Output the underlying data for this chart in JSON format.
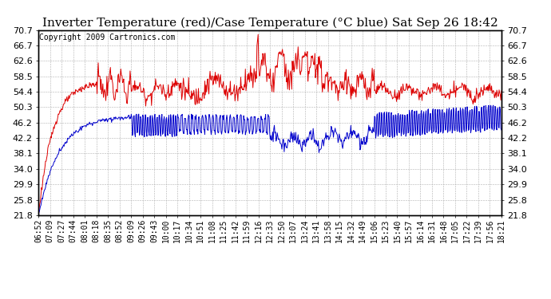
{
  "title": "Inverter Temperature (red)/Case Temperature (°C blue) Sat Sep 26 18:42",
  "copyright": "Copyright 2009 Cartronics.com",
  "yticks": [
    21.8,
    25.8,
    29.9,
    34.0,
    38.1,
    42.2,
    46.2,
    50.3,
    54.4,
    58.5,
    62.6,
    66.7,
    70.7
  ],
  "ymin": 21.8,
  "ymax": 70.7,
  "xtick_labels": [
    "06:52",
    "07:09",
    "07:27",
    "07:44",
    "08:01",
    "08:18",
    "08:35",
    "08:52",
    "09:09",
    "09:26",
    "09:43",
    "10:00",
    "10:17",
    "10:34",
    "10:51",
    "11:08",
    "11:25",
    "11:42",
    "11:59",
    "12:16",
    "12:33",
    "12:50",
    "13:07",
    "13:24",
    "13:41",
    "13:58",
    "14:15",
    "14:32",
    "14:49",
    "15:06",
    "15:23",
    "15:40",
    "15:57",
    "16:14",
    "16:31",
    "16:48",
    "17:05",
    "17:22",
    "17:39",
    "17:56",
    "18:21"
  ],
  "bg_color": "#ffffff",
  "grid_color": "#b0b0b0",
  "red_line_color": "#dd0000",
  "blue_line_color": "#0000cc",
  "title_fontsize": 11,
  "copyright_fontsize": 7,
  "tick_fontsize": 7,
  "ytick_fontsize": 8
}
